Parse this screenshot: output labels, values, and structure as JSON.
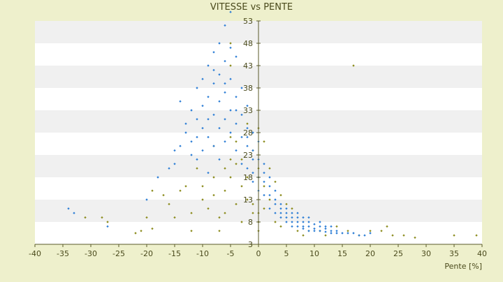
{
  "chart_data": {
    "type": "scatter",
    "title": "VITESSE vs PENTE",
    "xlabel": "Pente [%]",
    "ylabel": "",
    "xlim": [
      -40,
      40
    ],
    "ylim": [
      3,
      53
    ],
    "x_ticks": [
      "-40",
      "-35",
      "-30",
      "-25",
      "-20",
      "-15",
      "-10",
      "-5",
      "0",
      "5",
      "10",
      "15",
      "20",
      "25",
      "30",
      "35",
      "40"
    ],
    "y_ticks": [
      "3",
      "8",
      "13",
      "18",
      "23",
      "28",
      "33",
      "38",
      "43",
      "48",
      "53"
    ],
    "grid": "horizontal bands",
    "legend": "none",
    "colors": {
      "background": "#eef0cc",
      "plot_band_light": "#ffffff",
      "plot_band_dark": "#f0f0f0",
      "series_blue": "#2f7fd6",
      "series_olive": "#8c8c1e",
      "axis": "#5a5a2a"
    },
    "series": [
      {
        "color": "#2f7fd6",
        "points": [
          [
            -34,
            11
          ],
          [
            -33,
            10
          ],
          [
            -27,
            7
          ],
          [
            -20,
            13
          ],
          [
            -18,
            18
          ],
          [
            -16,
            20
          ],
          [
            -15,
            24
          ],
          [
            -15,
            21
          ],
          [
            -14,
            25
          ],
          [
            -14,
            35
          ],
          [
            -13,
            30
          ],
          [
            -13,
            28
          ],
          [
            -12,
            33
          ],
          [
            -12,
            26
          ],
          [
            -11,
            38
          ],
          [
            -11,
            22
          ],
          [
            -11,
            31
          ],
          [
            -10,
            34
          ],
          [
            -10,
            29
          ],
          [
            -10,
            40
          ],
          [
            -10,
            24
          ],
          [
            -9,
            36
          ],
          [
            -9,
            27
          ],
          [
            -9,
            43
          ],
          [
            -9,
            19
          ],
          [
            -8,
            39
          ],
          [
            -8,
            32
          ],
          [
            -8,
            46
          ],
          [
            -8,
            25
          ],
          [
            -7,
            48
          ],
          [
            -7,
            35
          ],
          [
            -7,
            29
          ],
          [
            -7,
            41
          ],
          [
            -7,
            22
          ],
          [
            -6,
            52
          ],
          [
            -6,
            44
          ],
          [
            -6,
            37
          ],
          [
            -6,
            31
          ],
          [
            -6,
            26
          ],
          [
            -5,
            55
          ],
          [
            -5,
            47
          ],
          [
            -5,
            40
          ],
          [
            -5,
            33
          ],
          [
            -5,
            28
          ],
          [
            -4,
            45
          ],
          [
            -4,
            36
          ],
          [
            -4,
            30
          ],
          [
            -4,
            24
          ],
          [
            -3,
            38
          ],
          [
            -3,
            32
          ],
          [
            -3,
            27
          ],
          [
            -3,
            21
          ],
          [
            -2,
            34
          ],
          [
            -2,
            29
          ],
          [
            -2,
            25
          ],
          [
            -2,
            20
          ],
          [
            -1,
            28
          ],
          [
            -1,
            24
          ],
          [
            -1,
            19
          ],
          [
            -1,
            17
          ],
          [
            0,
            26
          ],
          [
            0,
            22
          ],
          [
            0,
            18
          ],
          [
            0,
            15
          ],
          [
            1,
            21
          ],
          [
            1,
            17
          ],
          [
            1,
            14
          ],
          [
            2,
            18
          ],
          [
            2,
            14
          ],
          [
            2,
            11
          ],
          [
            3,
            15
          ],
          [
            3,
            12
          ],
          [
            3,
            10
          ],
          [
            4,
            12
          ],
          [
            4,
            10
          ],
          [
            4,
            9
          ],
          [
            5,
            11
          ],
          [
            5,
            9
          ],
          [
            5,
            8
          ],
          [
            6,
            10
          ],
          [
            6,
            8
          ],
          [
            6,
            7
          ],
          [
            7,
            9
          ],
          [
            7,
            8
          ],
          [
            7,
            7
          ],
          [
            8,
            9
          ],
          [
            8,
            7
          ],
          [
            8,
            6.5
          ],
          [
            9,
            8
          ],
          [
            9,
            7
          ],
          [
            9,
            6
          ],
          [
            10,
            7.5
          ],
          [
            10,
            6.5
          ],
          [
            10,
            6
          ],
          [
            11,
            7
          ],
          [
            11,
            6
          ],
          [
            12,
            6.5
          ],
          [
            12,
            5.8
          ],
          [
            13,
            6
          ],
          [
            13,
            5.5
          ],
          [
            14,
            6
          ],
          [
            14,
            5.5
          ],
          [
            15,
            5.5
          ],
          [
            16,
            5.5
          ],
          [
            17,
            5.5
          ],
          [
            18,
            5
          ],
          [
            19,
            5
          ],
          [
            20,
            5.5
          ],
          [
            3,
            13
          ],
          [
            4,
            11
          ],
          [
            5,
            10
          ],
          [
            6,
            9
          ],
          [
            7,
            10
          ],
          [
            8,
            8
          ],
          [
            9,
            9
          ],
          [
            11,
            8
          ],
          [
            12,
            7
          ],
          [
            13,
            7
          ],
          [
            2,
            16
          ],
          [
            1,
            19
          ],
          [
            -1,
            22
          ],
          [
            -2,
            27
          ],
          [
            -4,
            33
          ],
          [
            -6,
            39
          ],
          [
            -8,
            42
          ],
          [
            -9,
            31
          ],
          [
            -11,
            27
          ],
          [
            -12,
            23
          ]
        ]
      },
      {
        "color": "#8c8c1e",
        "points": [
          [
            -31,
            9
          ],
          [
            -28,
            9
          ],
          [
            -27,
            8
          ],
          [
            -22,
            5.5
          ],
          [
            -21,
            6
          ],
          [
            -20,
            9
          ],
          [
            -19,
            15
          ],
          [
            -19,
            6.5
          ],
          [
            -17,
            14
          ],
          [
            -16,
            12
          ],
          [
            -15,
            9
          ],
          [
            -14,
            15
          ],
          [
            -13,
            16
          ],
          [
            -12,
            10
          ],
          [
            -12,
            6
          ],
          [
            -11,
            20
          ],
          [
            -10,
            16
          ],
          [
            -10,
            13
          ],
          [
            -9,
            11
          ],
          [
            -8,
            25
          ],
          [
            -8,
            18
          ],
          [
            -8,
            14
          ],
          [
            -7,
            9
          ],
          [
            -7,
            6
          ],
          [
            -6,
            20
          ],
          [
            -6,
            15
          ],
          [
            -6,
            10
          ],
          [
            -5,
            48
          ],
          [
            -5,
            43
          ],
          [
            -5,
            27
          ],
          [
            -5,
            22
          ],
          [
            -5,
            18
          ],
          [
            -4,
            26
          ],
          [
            -4,
            21
          ],
          [
            -4,
            12
          ],
          [
            -3,
            22
          ],
          [
            -3,
            16
          ],
          [
            -3,
            8
          ],
          [
            -2,
            30
          ],
          [
            -2,
            18
          ],
          [
            -2,
            13
          ],
          [
            -1,
            24
          ],
          [
            -1,
            12
          ],
          [
            -1,
            10
          ],
          [
            0,
            29
          ],
          [
            0,
            20
          ],
          [
            0,
            10
          ],
          [
            0,
            8
          ],
          [
            0,
            6
          ],
          [
            1,
            26
          ],
          [
            1,
            16
          ],
          [
            1,
            11
          ],
          [
            2,
            20
          ],
          [
            2,
            13
          ],
          [
            3,
            17
          ],
          [
            3,
            8
          ],
          [
            4,
            14
          ],
          [
            4,
            7
          ],
          [
            5,
            12
          ],
          [
            6,
            11
          ],
          [
            7,
            6
          ],
          [
            8,
            5
          ],
          [
            9,
            6
          ],
          [
            11,
            6
          ],
          [
            12,
            5
          ],
          [
            14,
            7
          ],
          [
            16,
            6
          ],
          [
            18,
            5
          ],
          [
            20,
            6
          ],
          [
            22,
            6
          ],
          [
            23,
            7
          ],
          [
            24,
            5
          ],
          [
            26,
            5
          ],
          [
            28,
            4.5
          ],
          [
            35,
            5
          ],
          [
            39,
            5
          ],
          [
            17,
            43
          ]
        ]
      }
    ]
  }
}
